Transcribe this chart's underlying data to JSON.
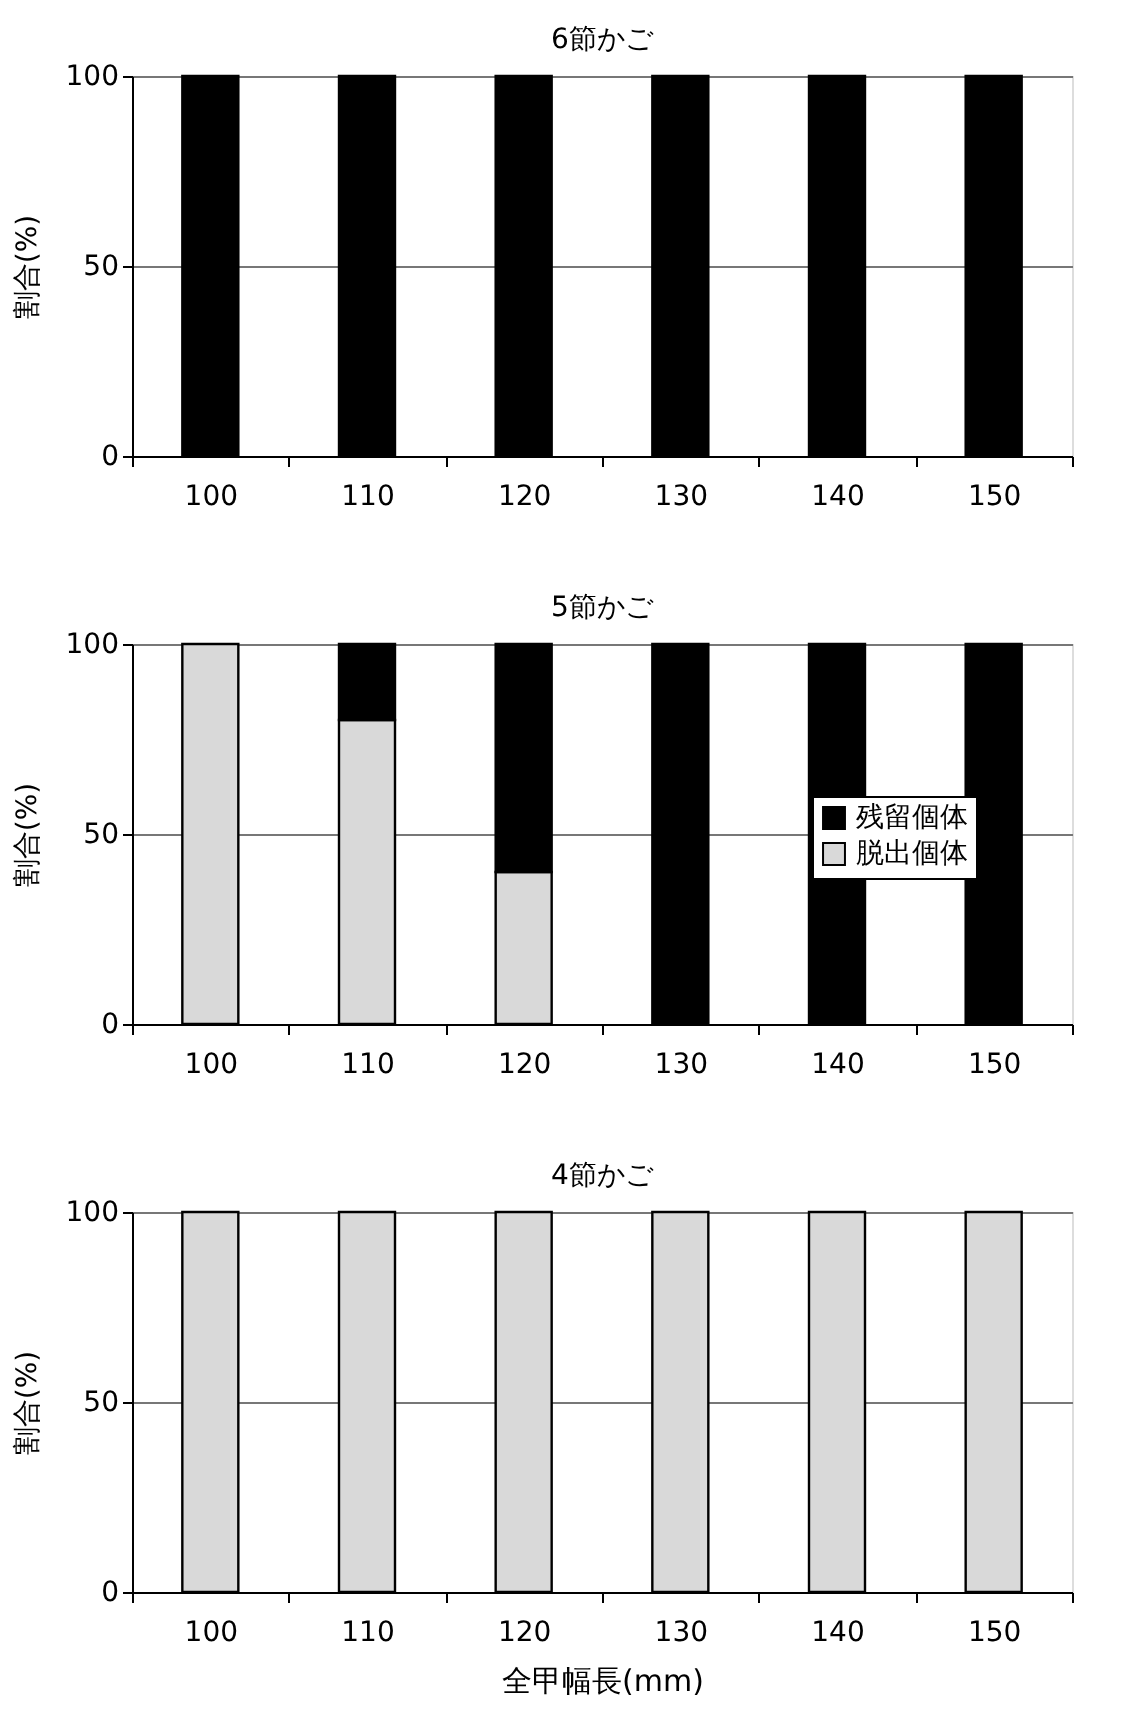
{
  "chart_data": [
    {
      "type": "bar",
      "title": "6節かご",
      "ylabel": "割合(%)",
      "categories": [
        "100",
        "110",
        "120",
        "130",
        "140",
        "150"
      ],
      "stacked": true,
      "ylim": [
        0,
        100
      ],
      "yticks": [
        0,
        50,
        100
      ],
      "grid": "y",
      "legend": false,
      "series": [
        {
          "color": "#d9d9d9",
          "values": [
            0,
            0,
            0,
            0,
            0,
            0
          ]
        },
        {
          "color": "#000000",
          "values": [
            100,
            100,
            100,
            100,
            100,
            100
          ]
        }
      ]
    },
    {
      "type": "bar",
      "title": "5節かご",
      "ylabel": "割合(%)",
      "categories": [
        "100",
        "110",
        "120",
        "130",
        "140",
        "150"
      ],
      "stacked": true,
      "ylim": [
        0,
        100
      ],
      "yticks": [
        0,
        50,
        100
      ],
      "grid": "y",
      "legend": "right",
      "series": [
        {
          "name": "脱出個体",
          "color": "#d9d9d9",
          "values": [
            100,
            80,
            40,
            0,
            0,
            0
          ]
        },
        {
          "name": "残留個体",
          "color": "#000000",
          "values": [
            0,
            20,
            60,
            100,
            100,
            100
          ]
        }
      ]
    },
    {
      "type": "bar",
      "title": "4節かご",
      "ylabel": "割合(%)",
      "xlabel": "全甲幅長(mm)",
      "categories": [
        "100",
        "110",
        "120",
        "130",
        "140",
        "150"
      ],
      "stacked": true,
      "ylim": [
        0,
        100
      ],
      "yticks": [
        0,
        50,
        100
      ],
      "grid": "y",
      "legend": false,
      "series": [
        {
          "color": "#d9d9d9",
          "values": [
            100,
            100,
            100,
            100,
            100,
            100
          ]
        },
        {
          "color": "#000000",
          "values": [
            0,
            0,
            0,
            0,
            0,
            0
          ]
        }
      ]
    }
  ]
}
